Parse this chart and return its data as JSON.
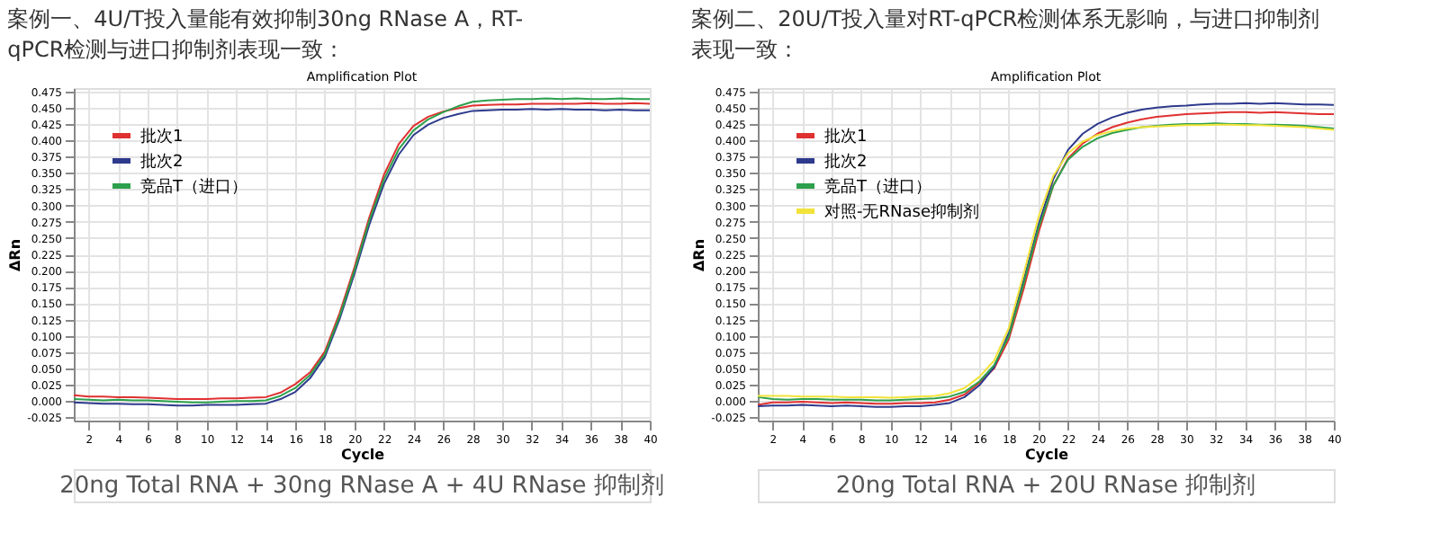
{
  "chart_data": [
    {
      "type": "line",
      "title": "案例一、4U/T投入量能有效抑制30ng  RNase  A，RT-qPCR检测与进口抑制剂表现一致：",
      "subtitle": "Amplification Plot",
      "xlabel": "Cycle",
      "ylabel": "ΔRn",
      "annotations": [
        "20ng Total RNA + 30ng RNase A + 4U RNase 抑制剂"
      ],
      "x": [
        1,
        2,
        3,
        4,
        5,
        6,
        7,
        8,
        9,
        10,
        11,
        12,
        13,
        14,
        15,
        16,
        17,
        18,
        19,
        20,
        21,
        22,
        23,
        24,
        25,
        26,
        27,
        28,
        29,
        30,
        31,
        32,
        33,
        34,
        35,
        36,
        37,
        38,
        39,
        40
      ],
      "series": [
        {
          "name": "批次1",
          "color": "#e03131",
          "values": [
            0.009,
            0.007,
            0.007,
            0.006,
            0.006,
            0.005,
            0.004,
            0.003,
            0.003,
            0.003,
            0.004,
            0.004,
            0.005,
            0.006,
            0.013,
            0.026,
            0.044,
            0.076,
            0.135,
            0.205,
            0.281,
            0.347,
            0.394,
            0.422,
            0.436,
            0.444,
            0.449,
            0.453,
            0.454,
            0.455,
            0.455,
            0.456,
            0.456,
            0.456,
            0.456,
            0.457,
            0.456,
            0.456,
            0.457,
            0.456
          ]
        },
        {
          "name": "批次2",
          "color": "#2e3a8c",
          "values": [
            -0.002,
            -0.003,
            -0.004,
            -0.004,
            -0.005,
            -0.005,
            -0.006,
            -0.007,
            -0.007,
            -0.006,
            -0.006,
            -0.006,
            -0.005,
            -0.004,
            0.003,
            0.014,
            0.035,
            0.068,
            0.126,
            0.195,
            0.27,
            0.333,
            0.378,
            0.408,
            0.424,
            0.434,
            0.44,
            0.445,
            0.446,
            0.447,
            0.447,
            0.448,
            0.447,
            0.448,
            0.447,
            0.447,
            0.446,
            0.447,
            0.446,
            0.446
          ]
        },
        {
          "name": "竞品T（进口）",
          "color": "#2ca04c",
          "values": [
            0.003,
            0.002,
            0.001,
            0.002,
            0.001,
            0.001,
            0.0,
            -0.001,
            -0.002,
            -0.002,
            -0.001,
            0.0,
            0.0,
            0.001,
            0.008,
            0.02,
            0.04,
            0.072,
            0.13,
            0.2,
            0.276,
            0.34,
            0.386,
            0.415,
            0.432,
            0.443,
            0.452,
            0.459,
            0.461,
            0.462,
            0.463,
            0.463,
            0.464,
            0.463,
            0.464,
            0.463,
            0.463,
            0.464,
            0.463,
            0.463
          ]
        }
      ],
      "xlim": [
        1,
        40
      ],
      "xticks": [
        2,
        4,
        6,
        8,
        10,
        12,
        14,
        16,
        18,
        20,
        22,
        24,
        26,
        28,
        30,
        32,
        34,
        36,
        38,
        40
      ],
      "ylim": [
        -0.03,
        0.48
      ],
      "yticks": [
        {
          "value": -0.025,
          "label": "-0.025"
        },
        {
          "value": 0,
          "label": "0.000"
        },
        {
          "value": 0.025,
          "label": "0.025"
        },
        {
          "value": 0.05,
          "label": "0.050"
        },
        {
          "value": 0.075,
          "label": "0.075"
        },
        {
          "value": 0.1,
          "label": "0.100"
        },
        {
          "value": 0.125,
          "label": "0.125"
        },
        {
          "value": 0.15,
          "label": "0.150"
        },
        {
          "value": 0.175,
          "label": "0.175"
        },
        {
          "value": 0.2,
          "label": "0.200"
        },
        {
          "value": 0.225,
          "label": "0.225"
        },
        {
          "value": 0.25,
          "label": "0.250"
        },
        {
          "value": 0.275,
          "label": "0.275"
        },
        {
          "value": 0.3,
          "label": "0.300"
        },
        {
          "value": 0.325,
          "label": "0.325"
        },
        {
          "value": 0.35,
          "label": "0.350"
        },
        {
          "value": 0.375,
          "label": "0.375"
        },
        {
          "value": 0.4,
          "label": "0.400"
        },
        {
          "value": 0.425,
          "label": "0.425"
        },
        {
          "value": 0.45,
          "label": "0.450"
        },
        {
          "value": 0.475,
          "label": "0.475"
        }
      ],
      "grid": true,
      "legend": "top left",
      "marker": "none",
      "line_style": "solid"
    },
    {
      "type": "line",
      "title": "案例二、20U/T投入量对RT-qPCR检测体系无影响，与进口抑制剂表现一致：",
      "subtitle": "Amplification Plot",
      "xlabel": "Cycle",
      "ylabel": "ΔRn",
      "annotations": [
        "20ng Total RNA + 20U RNase 抑制剂"
      ],
      "x": [
        1,
        2,
        3,
        4,
        5,
        6,
        7,
        8,
        9,
        10,
        11,
        12,
        13,
        14,
        15,
        16,
        17,
        18,
        19,
        20,
        21,
        22,
        23,
        24,
        25,
        26,
        27,
        28,
        29,
        30,
        31,
        32,
        33,
        34,
        35,
        36,
        37,
        38,
        39,
        40
      ],
      "series": [
        {
          "name": "批次1",
          "color": "#e03131",
          "values": [
            -0.006,
            -0.002,
            -0.002,
            -0.001,
            -0.002,
            -0.003,
            -0.002,
            -0.003,
            -0.004,
            -0.004,
            -0.003,
            -0.003,
            -0.002,
            0.002,
            0.01,
            0.028,
            0.05,
            0.095,
            0.172,
            0.258,
            0.33,
            0.372,
            0.395,
            0.41,
            0.42,
            0.427,
            0.432,
            0.436,
            0.438,
            0.44,
            0.441,
            0.442,
            0.443,
            0.443,
            0.442,
            0.443,
            0.442,
            0.441,
            0.44,
            0.44
          ]
        },
        {
          "name": "批次2",
          "color": "#2e3a8c",
          "values": [
            -0.008,
            -0.007,
            -0.007,
            -0.006,
            -0.007,
            -0.008,
            -0.007,
            -0.008,
            -0.009,
            -0.009,
            -0.008,
            -0.008,
            -0.006,
            -0.003,
            0.006,
            0.024,
            0.052,
            0.105,
            0.185,
            0.27,
            0.34,
            0.385,
            0.41,
            0.425,
            0.435,
            0.442,
            0.447,
            0.45,
            0.452,
            0.453,
            0.455,
            0.456,
            0.456,
            0.457,
            0.456,
            0.457,
            0.456,
            0.455,
            0.455,
            0.454
          ]
        },
        {
          "name": "竞品T（进口）",
          "color": "#2ca04c",
          "values": [
            0.006,
            0.003,
            0.002,
            0.003,
            0.003,
            0.002,
            0.002,
            0.002,
            0.001,
            0.001,
            0.002,
            0.003,
            0.004,
            0.007,
            0.014,
            0.03,
            0.055,
            0.1,
            0.18,
            0.265,
            0.33,
            0.37,
            0.39,
            0.403,
            0.411,
            0.416,
            0.42,
            0.422,
            0.424,
            0.425,
            0.425,
            0.426,
            0.425,
            0.425,
            0.424,
            0.424,
            0.423,
            0.422,
            0.42,
            0.418
          ]
        },
        {
          "name": "对照-无RNase抑制剂",
          "color": "#f2e33a",
          "values": [
            0.008,
            0.008,
            0.008,
            0.007,
            0.007,
            0.007,
            0.006,
            0.006,
            0.006,
            0.005,
            0.006,
            0.007,
            0.008,
            0.012,
            0.02,
            0.037,
            0.062,
            0.112,
            0.195,
            0.282,
            0.345,
            0.38,
            0.398,
            0.408,
            0.414,
            0.418,
            0.42,
            0.421,
            0.422,
            0.423,
            0.423,
            0.424,
            0.424,
            0.423,
            0.423,
            0.422,
            0.421,
            0.42,
            0.418,
            0.416
          ]
        }
      ],
      "xlim": [
        1,
        40
      ],
      "xticks": [
        2,
        4,
        6,
        8,
        10,
        12,
        14,
        16,
        18,
        20,
        22,
        24,
        26,
        28,
        30,
        32,
        34,
        36,
        38,
        40
      ],
      "ylim": [
        -0.03,
        0.48
      ],
      "yticks": [
        {
          "value": -0.025,
          "label": "-0.025"
        },
        {
          "value": 0,
          "label": "0.000"
        },
        {
          "value": 0.025,
          "label": "0.025"
        },
        {
          "value": 0.05,
          "label": "0.050"
        },
        {
          "value": 0.075,
          "label": "0.075"
        },
        {
          "value": 0.1,
          "label": "0.100"
        },
        {
          "value": 0.125,
          "label": "0.125"
        },
        {
          "value": 0.15,
          "label": "0.150"
        },
        {
          "value": 0.175,
          "label": "0.175"
        },
        {
          "value": 0.2,
          "label": "0.200"
        },
        {
          "value": 0.225,
          "label": "0.225"
        },
        {
          "value": 0.25,
          "label": "0.250"
        },
        {
          "value": 0.275,
          "label": "0.275"
        },
        {
          "value": 0.3,
          "label": "0.300"
        },
        {
          "value": 0.325,
          "label": "0.325"
        },
        {
          "value": 0.35,
          "label": "0.350"
        },
        {
          "value": 0.375,
          "label": "0.375"
        },
        {
          "value": 0.4,
          "label": "0.400"
        },
        {
          "value": 0.425,
          "label": "0.425"
        },
        {
          "value": 0.45,
          "label": "0.450"
        },
        {
          "value": 0.475,
          "label": "0.475"
        }
      ],
      "grid": true,
      "legend": "top left",
      "marker": "none",
      "line_style": "solid"
    }
  ]
}
